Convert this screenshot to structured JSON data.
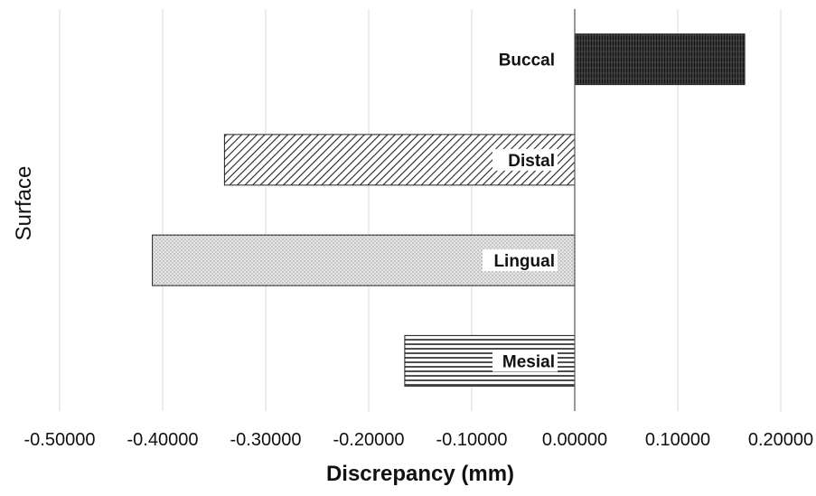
{
  "chart_data": {
    "type": "bar",
    "orientation": "horizontal",
    "title": "",
    "xlabel": "Discrepancy (mm)",
    "ylabel": "Surface",
    "xlim": [
      -0.5,
      0.2
    ],
    "x_ticks": [
      -0.5,
      -0.4,
      -0.3,
      -0.2,
      -0.1,
      0.0,
      0.1,
      0.2
    ],
    "x_tick_labels": [
      "-0.50000",
      "-0.40000",
      "-0.30000",
      "-0.20000",
      "-0.10000",
      "0.00000",
      "0.10000",
      "0.20000"
    ],
    "grid": "vertical",
    "legend": "none",
    "categories": [
      "Buccal",
      "Distal",
      "Lingual",
      "Mesial"
    ],
    "values": [
      0.165,
      -0.34,
      -0.41,
      -0.165
    ],
    "patterns": [
      "vertical-dense-dark",
      "diagonal-hatch",
      "dot-stipple",
      "horizontal-lines"
    ],
    "colors": {
      "bar_stroke": "#222222",
      "bar_fill_dark": "#2b2b2b",
      "grid": "#d9d9d9",
      "axis": "#555555"
    }
  }
}
